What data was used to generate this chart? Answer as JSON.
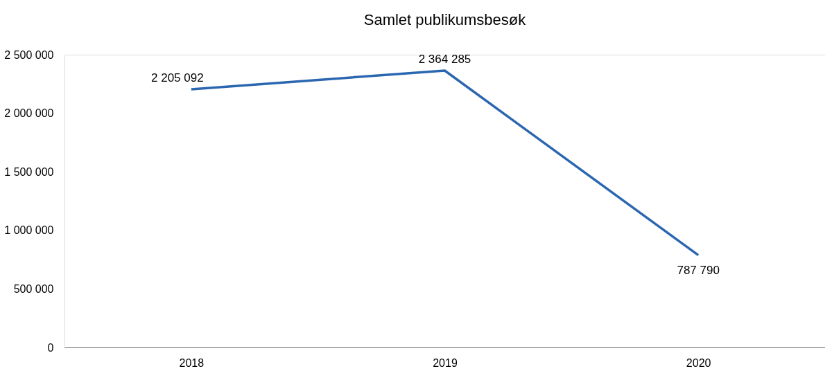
{
  "chart_data": {
    "type": "line",
    "title": "Samlet publikumsbesøk",
    "categories": [
      "2018",
      "2019",
      "2020"
    ],
    "series": [
      {
        "color": "#2b67b0",
        "values": [
          2205092,
          2364285,
          787790
        ],
        "value_labels": [
          "2 205 092",
          "2 364 285",
          "787 790"
        ]
      }
    ],
    "ylim": [
      0,
      2500000
    ],
    "yticks": [
      {
        "value": 0,
        "label": "0"
      },
      {
        "value": 500000,
        "label": "500 000"
      },
      {
        "value": 1000000,
        "label": "1 000 000"
      },
      {
        "value": 1500000,
        "label": "1 500 000"
      },
      {
        "value": 2000000,
        "label": "2 000 000"
      },
      {
        "value": 2500000,
        "label": "2 500 000"
      }
    ],
    "grid": false,
    "marker": "none",
    "line_style": "solid"
  }
}
